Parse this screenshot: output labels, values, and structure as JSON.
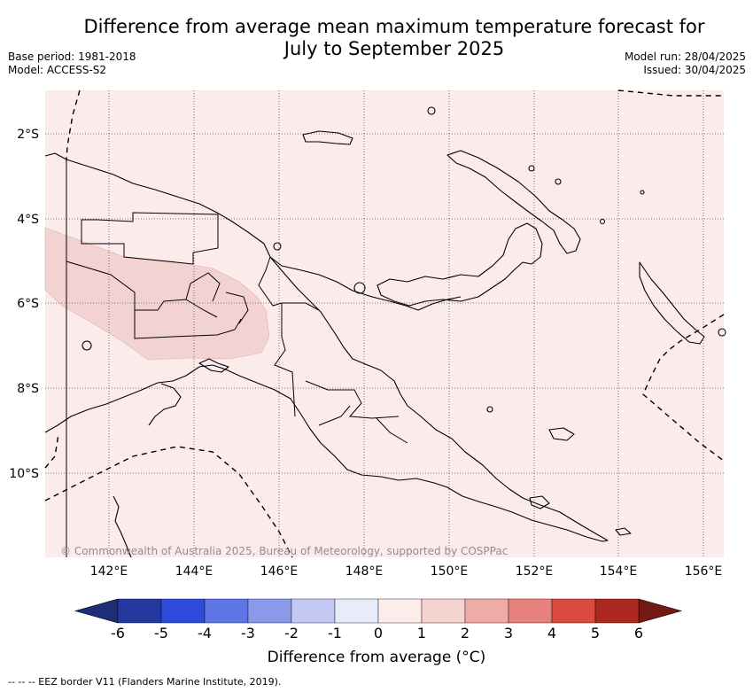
{
  "header": {
    "title_line1": "Difference from average mean maximum temperature forecast for",
    "title_line2": "July to September 2025",
    "base_period": "Base period: 1981-2018",
    "model": "Model: ACCESS-S2",
    "model_run": "Model run: 28/04/2025",
    "issued": "Issued: 30/04/2025"
  },
  "map": {
    "lon_ticks": [
      "142°E",
      "144°E",
      "146°E",
      "148°E",
      "150°E",
      "152°E",
      "154°E",
      "156°E"
    ],
    "lat_ticks": [
      "2°S",
      "4°S",
      "6°S",
      "8°S",
      "10°S"
    ],
    "copyright": "© Commonwealth of Australia 2025, Bureau of Meteorology, supported by COSPPac",
    "background_color": "#fbeceb",
    "anomaly_region_color": "#f3d3d1"
  },
  "colorbar": {
    "ticks": [
      "-6",
      "-5",
      "-4",
      "-3",
      "-2",
      "-1",
      "0",
      "1",
      "2",
      "3",
      "4",
      "5",
      "6"
    ],
    "colors": [
      "#23399f",
      "#2e4cdb",
      "#5e75e5",
      "#8a9ae9",
      "#c3c9f3",
      "#e8ebfa",
      "#fcecea",
      "#f4d3d1",
      "#efaca7",
      "#e6817b",
      "#d94a3f",
      "#ab281f"
    ],
    "under_color": "#1d2e78",
    "over_color": "#741a14",
    "label": "Difference from average (°C)"
  },
  "footnote": "--  --  -- EEZ border V11 (Flanders Marine Institute, 2019)."
}
